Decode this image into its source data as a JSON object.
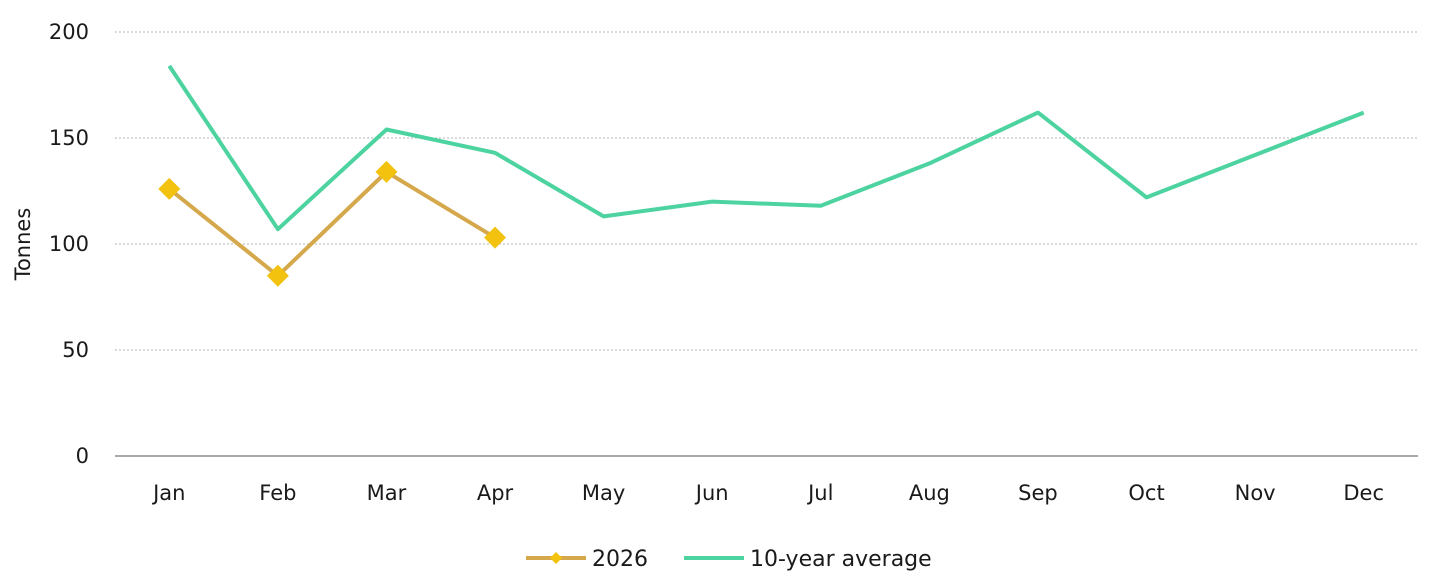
{
  "chart_data": {
    "type": "line",
    "title": "",
    "xlabel": "",
    "ylabel": "Tonnes",
    "ylim": [
      0,
      200
    ],
    "yticks": [
      0,
      50,
      100,
      150,
      200
    ],
    "grid": true,
    "legend_position": "bottom",
    "categories": [
      "Jan",
      "Feb",
      "Mar",
      "Apr",
      "May",
      "Jun",
      "Jul",
      "Aug",
      "Sep",
      "Oct",
      "Nov",
      "Dec"
    ],
    "series": [
      {
        "name": "2026",
        "color": "#D4A84B",
        "marker_color": "#F2C20F",
        "marker": "diamond",
        "values": [
          126,
          85,
          134,
          103,
          null,
          null,
          null,
          null,
          null,
          null,
          null,
          null
        ]
      },
      {
        "name": "10-year average",
        "color": "#4CD3A0",
        "marker": "none",
        "values": [
          184,
          107,
          154,
          143,
          113,
          120,
          118,
          138,
          162,
          122,
          142,
          162
        ]
      }
    ]
  }
}
